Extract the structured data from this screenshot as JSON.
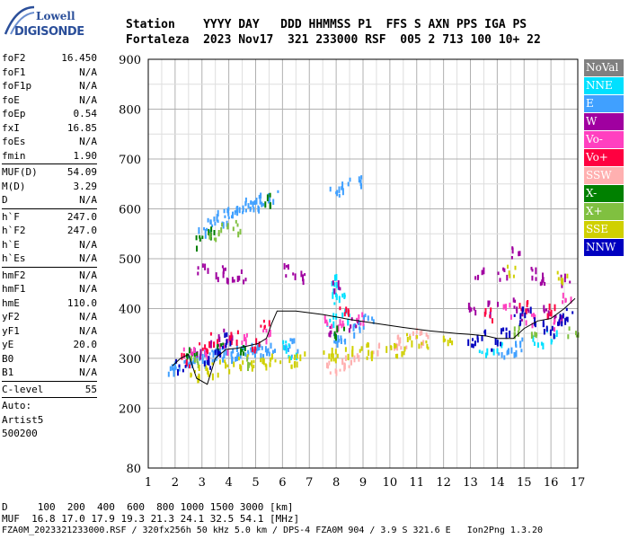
{
  "logo": {
    "line1": "Lowell",
    "line2": "DIGISONDE"
  },
  "header": {
    "line1": "Station    YYYY DAY   DDD HHMMSS P1  FFS S AXN PPS IGA PS",
    "line2": "Fortaleza  2023 Nov17  321 233000 RSF  005 2 713 100 10+ 22"
  },
  "params": {
    "group1": [
      {
        "name": "foF2",
        "value": "16.450"
      },
      {
        "name": "foF1",
        "value": "N/A"
      },
      {
        "name": "foF1p",
        "value": "N/A"
      },
      {
        "name": "foE",
        "value": "N/A"
      },
      {
        "name": "foEp",
        "value": "0.54"
      },
      {
        "name": "fxI",
        "value": "16.85"
      },
      {
        "name": "foEs",
        "value": "N/A"
      },
      {
        "name": "fmin",
        "value": "1.90"
      }
    ],
    "group2": [
      {
        "name": "MUF(D)",
        "value": "54.09"
      },
      {
        "name": "M(D)",
        "value": "3.29"
      },
      {
        "name": "D",
        "value": "N/A"
      }
    ],
    "group3": [
      {
        "name": "h`F",
        "value": "247.0"
      },
      {
        "name": "h`F2",
        "value": "247.0"
      },
      {
        "name": "h`E",
        "value": "N/A"
      },
      {
        "name": "h`Es",
        "value": "N/A"
      }
    ],
    "group4": [
      {
        "name": "hmF2",
        "value": "N/A"
      },
      {
        "name": "hmF1",
        "value": "N/A"
      },
      {
        "name": "hmE",
        "value": "110.0"
      },
      {
        "name": "yF2",
        "value": "N/A"
      },
      {
        "name": "yF1",
        "value": "N/A"
      },
      {
        "name": "yE",
        "value": "20.0"
      },
      {
        "name": "B0",
        "value": "N/A"
      },
      {
        "name": "B1",
        "value": "N/A"
      }
    ],
    "group5": [
      {
        "name": "C-level",
        "value": "55"
      }
    ],
    "auto": [
      "Auto:",
      "Artist5",
      "500200"
    ]
  },
  "legend": [
    {
      "label": "NoVal",
      "color": "#808080"
    },
    {
      "label": "NNE",
      "color": "#00e0ff"
    },
    {
      "label": "E",
      "color": "#40a0ff"
    },
    {
      "label": "W",
      "color": "#a000a0"
    },
    {
      "label": "Vo-",
      "color": "#ff40c0"
    },
    {
      "label": "Vo+",
      "color": "#ff0040"
    },
    {
      "label": "SSW",
      "color": "#ffb0b0"
    },
    {
      "label": "X-",
      "color": "#008000"
    },
    {
      "label": "X+",
      "color": "#80c040"
    },
    {
      "label": "SSE",
      "color": "#d0d000"
    },
    {
      "label": "NNW",
      "color": "#0000c0"
    }
  ],
  "footer": {
    "line1": "D     100  200  400  600  800 1000 1500 3000 [km]",
    "line2": "MUF  16.8 17.0 17.9 19.3 21.3 24.1 32.5 54.1 [MHz]",
    "line3": "FZA0M_2023321233000.RSF / 320fx256h 50 kHz 5.0 km / DPS-4 FZA0M 904 / 3.9 S 321.6 E   Ion2Png 1.3.20"
  },
  "chart_data": {
    "type": "scatter",
    "title": "",
    "xlabel": "",
    "ylabel": "",
    "xlim": [
      1,
      17
    ],
    "ylim": [
      80,
      900
    ],
    "x_ticks": [
      1,
      2,
      3,
      4,
      5,
      6,
      7,
      8,
      9,
      10,
      11,
      12,
      13,
      14,
      15,
      16,
      17
    ],
    "y_ticks": [
      80,
      200,
      300,
      400,
      500,
      600,
      700,
      800,
      900
    ],
    "grid": true,
    "series": [
      {
        "color": "#40a0ff",
        "points": [
          [
            1.9,
            283
          ],
          [
            2.1,
            288
          ],
          [
            2.3,
            292
          ],
          [
            2.5,
            296
          ],
          [
            2.7,
            300
          ],
          [
            2.9,
            303
          ],
          [
            3.1,
            306
          ],
          [
            3.3,
            308
          ],
          [
            3.5,
            309
          ],
          [
            3.7,
            311
          ],
          [
            3.9,
            313
          ],
          [
            4.1,
            314
          ],
          [
            4.3,
            316
          ],
          [
            4.5,
            317
          ],
          [
            4.7,
            318
          ],
          [
            4.9,
            319
          ],
          [
            5.1,
            320
          ],
          [
            5.3,
            321
          ],
          [
            5.5,
            322
          ],
          [
            3.0,
            560
          ],
          [
            3.3,
            570
          ],
          [
            3.5,
            578
          ],
          [
            3.7,
            585
          ],
          [
            3.9,
            590
          ],
          [
            4.1,
            595
          ],
          [
            4.3,
            600
          ],
          [
            4.5,
            605
          ],
          [
            4.7,
            610
          ],
          [
            4.9,
            612
          ],
          [
            5.1,
            616
          ],
          [
            5.3,
            620
          ],
          [
            5.6,
            625
          ],
          [
            7.9,
            640
          ],
          [
            8.3,
            650
          ],
          [
            8.8,
            660
          ],
          [
            6.2,
            320
          ],
          [
            6.4,
            330
          ],
          [
            7.9,
            340
          ],
          [
            8.2,
            350
          ],
          [
            8.5,
            360
          ],
          [
            9.0,
            370
          ],
          [
            9.2,
            380
          ],
          [
            14.2,
            310
          ],
          [
            14.5,
            320
          ],
          [
            14.8,
            330
          ]
        ]
      },
      {
        "color": "#00e0ff",
        "points": [
          [
            7.9,
            460
          ],
          [
            8.0,
            440
          ],
          [
            8.1,
            420
          ],
          [
            6.1,
            330
          ],
          [
            6.3,
            310
          ],
          [
            7.8,
            380
          ],
          [
            8.4,
            390
          ],
          [
            13.5,
            320
          ],
          [
            14.0,
            330
          ],
          [
            15.5,
            340
          ],
          [
            16.0,
            350
          ]
        ]
      },
      {
        "color": "#a000a0",
        "points": [
          [
            3.0,
            478
          ],
          [
            3.6,
            475
          ],
          [
            4.0,
            470
          ],
          [
            4.5,
            468
          ],
          [
            6.2,
            480
          ],
          [
            6.6,
            470
          ],
          [
            8.0,
            450
          ],
          [
            13.3,
            475
          ],
          [
            14.2,
            470
          ],
          [
            15.4,
            475
          ],
          [
            15.6,
            465
          ],
          [
            14.7,
            515
          ],
          [
            16.5,
            460
          ],
          [
            2.8,
            320
          ],
          [
            3.5,
            340
          ],
          [
            3.9,
            350
          ],
          [
            7.9,
            360
          ],
          [
            8.6,
            370
          ],
          [
            13.1,
            400
          ],
          [
            13.8,
            405
          ],
          [
            14.5,
            410
          ],
          [
            15.0,
            390
          ],
          [
            15.8,
            395
          ],
          [
            16.3,
            385
          ]
        ]
      },
      {
        "color": "#ff40c0",
        "points": [
          [
            2.5,
            320
          ],
          [
            3.2,
            310
          ],
          [
            3.8,
            330
          ],
          [
            4.6,
            340
          ],
          [
            5.4,
            350
          ],
          [
            7.6,
            380
          ],
          [
            8.2,
            370
          ],
          [
            8.9,
            385
          ],
          [
            14.4,
            400
          ],
          [
            15.2,
            380
          ],
          [
            16.1,
            370
          ],
          [
            16.6,
            420
          ]
        ]
      },
      {
        "color": "#ff0040",
        "points": [
          [
            2.4,
            300
          ],
          [
            3.0,
            330
          ],
          [
            3.4,
            340
          ],
          [
            4.2,
            345
          ],
          [
            5.0,
            330
          ],
          [
            5.3,
            370
          ],
          [
            8.3,
            400
          ],
          [
            13.7,
            390
          ],
          [
            14.9,
            410
          ],
          [
            16.0,
            400
          ]
        ]
      },
      {
        "color": "#ffb0b0",
        "points": [
          [
            7.8,
            285
          ],
          [
            8.1,
            290
          ],
          [
            8.4,
            295
          ],
          [
            8.7,
            300
          ],
          [
            9.4,
            320
          ],
          [
            10.2,
            340
          ],
          [
            10.5,
            330
          ],
          [
            10.9,
            350
          ],
          [
            11.3,
            345
          ]
        ]
      },
      {
        "color": "#008000",
        "points": [
          [
            2.9,
            535
          ],
          [
            3.3,
            555
          ],
          [
            5.4,
            620
          ],
          [
            2.6,
            310
          ],
          [
            3.7,
            320
          ],
          [
            4.6,
            325
          ],
          [
            8.1,
            360
          ]
        ]
      },
      {
        "color": "#80c040",
        "points": [
          [
            3.4,
            540
          ],
          [
            3.8,
            560
          ],
          [
            4.2,
            565
          ],
          [
            2.7,
            295
          ],
          [
            4.8,
            300
          ],
          [
            14.6,
            360
          ],
          [
            15.3,
            350
          ],
          [
            16.8,
            360
          ]
        ]
      },
      {
        "color": "#d0d000",
        "points": [
          [
            2.7,
            270
          ],
          [
            3.0,
            275
          ],
          [
            3.4,
            282
          ],
          [
            3.8,
            288
          ],
          [
            4.3,
            292
          ],
          [
            4.8,
            296
          ],
          [
            5.3,
            300
          ],
          [
            5.7,
            302
          ],
          [
            6.3,
            300
          ],
          [
            6.6,
            305
          ],
          [
            7.7,
            308
          ],
          [
            8.0,
            312
          ],
          [
            8.5,
            318
          ],
          [
            9.0,
            322
          ],
          [
            9.3,
            316
          ],
          [
            10.0,
            330
          ],
          [
            10.4,
            320
          ],
          [
            10.8,
            340
          ],
          [
            11.2,
            335
          ],
          [
            12.1,
            340
          ],
          [
            16.4,
            470
          ],
          [
            14.5,
            480
          ]
        ]
      },
      {
        "color": "#0000c0",
        "points": [
          [
            2.2,
            290
          ],
          [
            3.1,
            295
          ],
          [
            3.6,
            320
          ],
          [
            4.0,
            340
          ],
          [
            13.0,
            340
          ],
          [
            13.4,
            350
          ],
          [
            13.9,
            330
          ],
          [
            14.3,
            360
          ],
          [
            14.7,
            380
          ],
          [
            15.1,
            400
          ],
          [
            15.5,
            370
          ],
          [
            15.9,
            360
          ],
          [
            16.4,
            380
          ],
          [
            16.7,
            390
          ]
        ]
      }
    ],
    "trace": {
      "color": "#000000",
      "points": [
        [
          1.9,
          285
        ],
        [
          2.2,
          300
        ],
        [
          2.5,
          308
        ],
        [
          2.8,
          260
        ],
        [
          3.2,
          248
        ],
        [
          3.5,
          300
        ],
        [
          3.9,
          318
        ],
        [
          4.3,
          320
        ],
        [
          4.7,
          325
        ],
        [
          5.1,
          330
        ],
        [
          5.4,
          340
        ],
        [
          5.6,
          370
        ],
        [
          5.8,
          395
        ],
        [
          6.5,
          395
        ],
        [
          7.5,
          388
        ],
        [
          8.5,
          378
        ],
        [
          9.5,
          370
        ],
        [
          10.5,
          362
        ],
        [
          11.5,
          355
        ],
        [
          12.5,
          350
        ],
        [
          13.0,
          348
        ],
        [
          13.6,
          345
        ],
        [
          14.0,
          340
        ],
        [
          14.6,
          340
        ],
        [
          15.0,
          360
        ],
        [
          15.5,
          375
        ],
        [
          16.0,
          380
        ],
        [
          16.5,
          400
        ],
        [
          16.9,
          420
        ]
      ]
    }
  }
}
